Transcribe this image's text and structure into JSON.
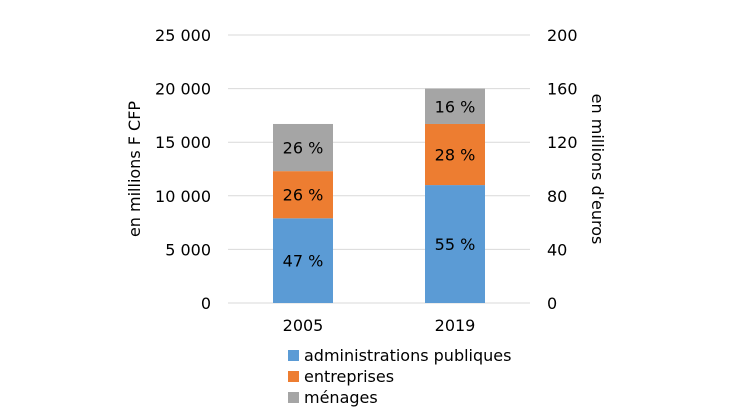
{
  "chart_data": {
    "type": "bar",
    "stacked": true,
    "categories": [
      "2005",
      "2019"
    ],
    "series": [
      {
        "name": "administrations publiques",
        "color": "#5b9bd5",
        "values": [
          7900,
          11000
        ],
        "labels": [
          "47 %",
          "55 %"
        ]
      },
      {
        "name": "entreprises",
        "color": "#ed7d31",
        "values": [
          4400,
          5700
        ],
        "labels": [
          "26 %",
          "28 %"
        ]
      },
      {
        "name": "ménages",
        "color": "#a5a5a5",
        "values": [
          4400,
          3300
        ],
        "labels": [
          "26 %",
          "16 %"
        ]
      }
    ],
    "ylabel": "en millions F CFP",
    "ylim": [
      0,
      25000
    ],
    "yticks": [
      "0",
      "5 000",
      "10 000",
      "15 000",
      "20 000",
      "25 000"
    ],
    "y2label": "en millions d'euros",
    "y2lim": [
      0,
      200
    ],
    "y2ticks": [
      "0",
      "40",
      "80",
      "120",
      "160",
      "200"
    ],
    "grid": true,
    "legend_position": "bottom"
  }
}
